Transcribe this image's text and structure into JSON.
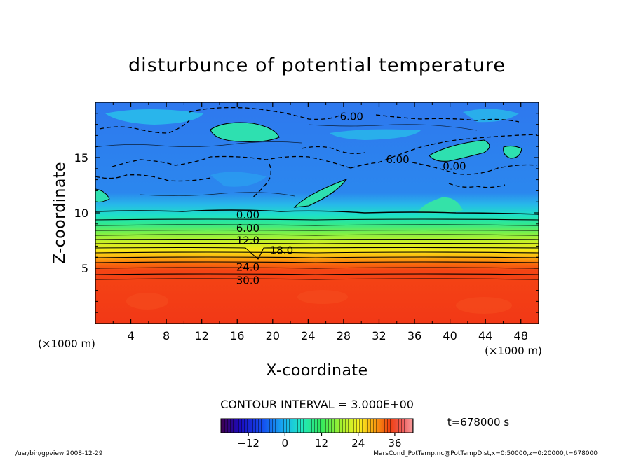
{
  "chart_data": {
    "type": "heatmap",
    "title": "disturbunce of potential temperature",
    "xlabel": "X-coordinate",
    "ylabel": "Z-coordinate",
    "x_unit_left": "(×1000 m)",
    "x_unit_right": "(×1000 m)",
    "xlim": [
      0,
      50
    ],
    "ylim": [
      0,
      20
    ],
    "x_ticks": [
      4,
      8,
      12,
      16,
      20,
      24,
      28,
      32,
      36,
      40,
      44,
      48
    ],
    "y_ticks": [
      5,
      10,
      15
    ],
    "contour_interval": "CONTOUR INTERVAL = 3.000E+00",
    "contour_labels": [
      {
        "text": "6.00",
        "x": 28.9,
        "z": 18.7
      },
      {
        "text": "6.00",
        "x": 34.1,
        "z": 14.8
      },
      {
        "text": "0.00",
        "x": 40.5,
        "z": 14.2
      },
      {
        "text": "0.00",
        "x": 17.2,
        "z": 9.8
      },
      {
        "text": "6.00",
        "x": 17.2,
        "z": 8.6
      },
      {
        "text": "12.0",
        "x": 17.2,
        "z": 7.5
      },
      {
        "text": "18.0",
        "x": 21.0,
        "z": 6.6
      },
      {
        "text": "24.0",
        "x": 17.2,
        "z": 5.1
      },
      {
        "text": "30.0",
        "x": 17.2,
        "z": 3.9
      }
    ],
    "colorbar": {
      "min": -21,
      "max": 42,
      "ticks": [
        -12,
        0,
        12,
        24,
        36
      ],
      "tick_labels": [
        "−12",
        "0",
        "12",
        "24",
        "36"
      ]
    },
    "time_label": "t=678000 s",
    "grid": false,
    "legend": "colorbar-bottom"
  },
  "footer": {
    "left": "/usr/bin/gpview  2008-12-29",
    "right": "MarsCond_PotTemp.nc@PotTempDist,x=0:50000,z=0:20000,t=678000"
  },
  "colors": {
    "background": "#ffffff",
    "upper_fill": "#1e7ef0",
    "lower_fill": "#f03c14"
  }
}
